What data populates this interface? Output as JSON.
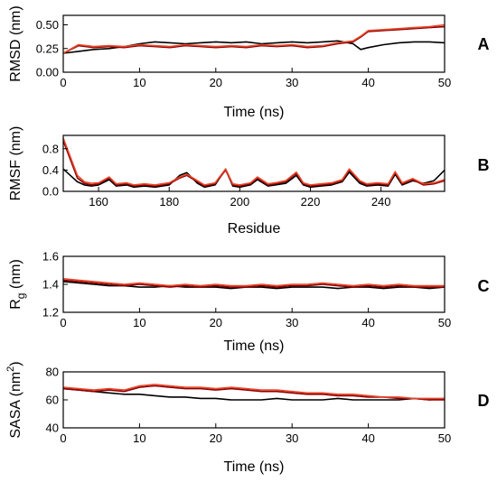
{
  "chart_data": [
    {
      "type": "line",
      "panel_label": "A",
      "xlabel": "Time (ns)",
      "ylabel": "RMSD (nm)",
      "xlim": [
        0,
        50
      ],
      "ylim": [
        0,
        0.6
      ],
      "xticks": [
        "0",
        "10",
        "20",
        "30",
        "40",
        "50"
      ],
      "yticks": [
        "0.00",
        "0.25",
        "0.50"
      ],
      "series": [
        {
          "color": "#000000",
          "x": [
            0,
            2,
            4,
            6,
            8,
            10,
            12,
            14,
            16,
            18,
            20,
            22,
            24,
            26,
            28,
            30,
            32,
            34,
            36,
            38,
            39,
            40,
            42,
            44,
            46,
            48,
            50
          ],
          "values": [
            0.2,
            0.22,
            0.24,
            0.25,
            0.27,
            0.3,
            0.32,
            0.31,
            0.3,
            0.31,
            0.32,
            0.31,
            0.32,
            0.3,
            0.31,
            0.32,
            0.31,
            0.32,
            0.33,
            0.3,
            0.24,
            0.26,
            0.29,
            0.31,
            0.32,
            0.32,
            0.31
          ]
        },
        {
          "color": "#8B0000",
          "x": [
            0,
            2,
            4,
            6,
            8,
            10,
            12,
            14,
            16,
            18,
            20,
            22,
            24,
            26,
            28,
            30,
            32,
            34,
            36,
            38,
            39,
            40,
            42,
            44,
            46,
            48,
            50
          ],
          "values": [
            0.2,
            0.28,
            0.26,
            0.27,
            0.26,
            0.28,
            0.27,
            0.26,
            0.28,
            0.27,
            0.26,
            0.27,
            0.26,
            0.28,
            0.27,
            0.28,
            0.26,
            0.27,
            0.3,
            0.32,
            0.37,
            0.43,
            0.44,
            0.45,
            0.46,
            0.47,
            0.48
          ]
        },
        {
          "color": "#E8462A",
          "x": [
            0,
            2,
            4,
            6,
            8,
            10,
            12,
            14,
            16,
            18,
            20,
            22,
            24,
            26,
            28,
            30,
            32,
            34,
            36,
            38,
            39,
            40,
            42,
            44,
            46,
            48,
            50
          ],
          "values": [
            0.2,
            0.29,
            0.27,
            0.28,
            0.27,
            0.29,
            0.28,
            0.27,
            0.29,
            0.28,
            0.27,
            0.28,
            0.27,
            0.29,
            0.28,
            0.29,
            0.27,
            0.28,
            0.31,
            0.33,
            0.38,
            0.44,
            0.45,
            0.46,
            0.47,
            0.48,
            0.5
          ]
        }
      ]
    },
    {
      "type": "line",
      "panel_label": "B",
      "xlabel": "Residue",
      "ylabel": "RMSF (nm)",
      "xlim": [
        150,
        258
      ],
      "ylim": [
        0,
        1.05
      ],
      "xticks": [
        "160",
        "180",
        "200",
        "220",
        "240"
      ],
      "yticks": [
        "0.0",
        "0.4",
        "0.8"
      ],
      "series": [
        {
          "color": "#000000",
          "x": [
            150,
            152,
            154,
            156,
            158,
            160,
            163,
            165,
            168,
            170,
            173,
            176,
            178,
            180,
            183,
            185,
            188,
            190,
            193,
            196,
            198,
            200,
            203,
            205,
            208,
            210,
            213,
            216,
            218,
            220,
            223,
            226,
            229,
            231,
            234,
            236,
            239,
            242,
            244,
            246,
            249,
            252,
            255,
            258
          ],
          "values": [
            0.42,
            0.3,
            0.18,
            0.12,
            0.1,
            0.12,
            0.22,
            0.1,
            0.12,
            0.08,
            0.1,
            0.08,
            0.1,
            0.12,
            0.3,
            0.35,
            0.15,
            0.08,
            0.12,
            0.42,
            0.1,
            0.08,
            0.12,
            0.22,
            0.1,
            0.12,
            0.15,
            0.3,
            0.12,
            0.08,
            0.1,
            0.12,
            0.18,
            0.36,
            0.15,
            0.1,
            0.12,
            0.1,
            0.32,
            0.12,
            0.2,
            0.15,
            0.2,
            0.4
          ]
        },
        {
          "color": "#8B0000",
          "x": [
            150,
            152,
            154,
            156,
            158,
            160,
            163,
            165,
            168,
            170,
            173,
            176,
            178,
            180,
            183,
            185,
            188,
            190,
            193,
            196,
            198,
            200,
            203,
            205,
            208,
            210,
            213,
            216,
            218,
            220,
            223,
            226,
            229,
            231,
            234,
            236,
            239,
            242,
            244,
            246,
            249,
            252,
            255,
            258
          ],
          "values": [
            0.95,
            0.6,
            0.25,
            0.15,
            0.12,
            0.14,
            0.25,
            0.12,
            0.14,
            0.1,
            0.12,
            0.1,
            0.12,
            0.14,
            0.25,
            0.3,
            0.18,
            0.1,
            0.14,
            0.4,
            0.12,
            0.1,
            0.14,
            0.25,
            0.12,
            0.14,
            0.18,
            0.34,
            0.14,
            0.1,
            0.12,
            0.14,
            0.2,
            0.4,
            0.18,
            0.12,
            0.14,
            0.12,
            0.35,
            0.14,
            0.22,
            0.12,
            0.14,
            0.2
          ]
        },
        {
          "color": "#E8462A",
          "x": [
            150,
            152,
            154,
            156,
            158,
            160,
            163,
            165,
            168,
            170,
            173,
            176,
            178,
            180,
            183,
            185,
            188,
            190,
            193,
            196,
            198,
            200,
            203,
            205,
            208,
            210,
            213,
            216,
            218,
            220,
            223,
            226,
            229,
            231,
            234,
            236,
            239,
            242,
            244,
            246,
            249,
            252,
            255,
            258
          ],
          "values": [
            1.0,
            0.65,
            0.3,
            0.18,
            0.15,
            0.16,
            0.27,
            0.14,
            0.16,
            0.12,
            0.14,
            0.12,
            0.14,
            0.16,
            0.27,
            0.32,
            0.2,
            0.12,
            0.16,
            0.42,
            0.14,
            0.12,
            0.16,
            0.27,
            0.14,
            0.16,
            0.2,
            0.36,
            0.16,
            0.12,
            0.14,
            0.16,
            0.22,
            0.42,
            0.2,
            0.14,
            0.16,
            0.14,
            0.37,
            0.16,
            0.24,
            0.14,
            0.16,
            0.22
          ]
        }
      ]
    },
    {
      "type": "line",
      "panel_label": "C",
      "xlabel": "Time (ns)",
      "ylabel_main": "R",
      "ylabel_sub": "g",
      "ylabel_rest": " (nm)",
      "xlim": [
        0,
        50
      ],
      "ylim": [
        1.2,
        1.6
      ],
      "xticks": [
        "0",
        "10",
        "20",
        "30",
        "40",
        "50"
      ],
      "yticks": [
        "1.2",
        "1.4",
        "1.6"
      ],
      "series": [
        {
          "color": "#000000",
          "x": [
            0,
            2,
            4,
            6,
            8,
            10,
            12,
            14,
            16,
            18,
            20,
            22,
            24,
            26,
            28,
            30,
            32,
            34,
            36,
            38,
            40,
            42,
            44,
            46,
            48,
            50
          ],
          "values": [
            1.42,
            1.41,
            1.4,
            1.39,
            1.39,
            1.38,
            1.38,
            1.39,
            1.38,
            1.38,
            1.38,
            1.37,
            1.38,
            1.38,
            1.37,
            1.38,
            1.38,
            1.38,
            1.37,
            1.38,
            1.38,
            1.37,
            1.38,
            1.38,
            1.37,
            1.38
          ]
        },
        {
          "color": "#8B0000",
          "x": [
            0,
            2,
            4,
            6,
            8,
            10,
            12,
            14,
            16,
            18,
            20,
            22,
            24,
            26,
            28,
            30,
            32,
            34,
            36,
            38,
            40,
            42,
            44,
            46,
            48,
            50
          ],
          "values": [
            1.43,
            1.42,
            1.41,
            1.4,
            1.39,
            1.4,
            1.39,
            1.38,
            1.39,
            1.38,
            1.39,
            1.38,
            1.38,
            1.39,
            1.38,
            1.39,
            1.39,
            1.4,
            1.39,
            1.38,
            1.39,
            1.38,
            1.39,
            1.38,
            1.38,
            1.38
          ]
        },
        {
          "color": "#E8462A",
          "x": [
            0,
            2,
            4,
            6,
            8,
            10,
            12,
            14,
            16,
            18,
            20,
            22,
            24,
            26,
            28,
            30,
            32,
            34,
            36,
            38,
            40,
            42,
            44,
            46,
            48,
            50
          ],
          "values": [
            1.44,
            1.43,
            1.42,
            1.41,
            1.4,
            1.41,
            1.4,
            1.39,
            1.4,
            1.39,
            1.4,
            1.39,
            1.39,
            1.4,
            1.39,
            1.4,
            1.4,
            1.41,
            1.4,
            1.39,
            1.4,
            1.39,
            1.4,
            1.39,
            1.39,
            1.39
          ]
        }
      ]
    },
    {
      "type": "line",
      "panel_label": "D",
      "xlabel": "Time (ns)",
      "ylabel_main": "SASA (nm",
      "ylabel_sup": "2",
      "ylabel_rest": ")",
      "xlim": [
        0,
        50
      ],
      "ylim": [
        40,
        80
      ],
      "xticks": [
        "0",
        "10",
        "20",
        "30",
        "40",
        "50"
      ],
      "yticks": [
        "40",
        "60",
        "80"
      ],
      "series": [
        {
          "color": "#000000",
          "x": [
            0,
            2,
            4,
            6,
            8,
            10,
            12,
            14,
            16,
            18,
            20,
            22,
            24,
            26,
            28,
            30,
            32,
            34,
            36,
            38,
            40,
            42,
            44,
            46,
            48,
            50
          ],
          "values": [
            68,
            67,
            66,
            65,
            64,
            64,
            63,
            62,
            62,
            61,
            61,
            60,
            60,
            60,
            61,
            60,
            60,
            60,
            61,
            60,
            60,
            60,
            60,
            61,
            60,
            61
          ]
        },
        {
          "color": "#8B0000",
          "x": [
            0,
            2,
            4,
            6,
            8,
            10,
            12,
            14,
            16,
            18,
            20,
            22,
            24,
            26,
            28,
            30,
            32,
            34,
            36,
            38,
            40,
            42,
            44,
            46,
            48,
            50
          ],
          "values": [
            68,
            67,
            66,
            67,
            66,
            69,
            70,
            69,
            68,
            68,
            67,
            68,
            67,
            66,
            66,
            65,
            64,
            64,
            63,
            63,
            62,
            62,
            61,
            61,
            60,
            60
          ]
        },
        {
          "color": "#E8462A",
          "x": [
            0,
            2,
            4,
            6,
            8,
            10,
            12,
            14,
            16,
            18,
            20,
            22,
            24,
            26,
            28,
            30,
            32,
            34,
            36,
            38,
            40,
            42,
            44,
            46,
            48,
            50
          ],
          "values": [
            69,
            68,
            67,
            68,
            67,
            70,
            71,
            70,
            69,
            69,
            68,
            69,
            68,
            67,
            67,
            66,
            65,
            65,
            64,
            64,
            63,
            62,
            62,
            61,
            61,
            61
          ]
        }
      ]
    }
  ]
}
